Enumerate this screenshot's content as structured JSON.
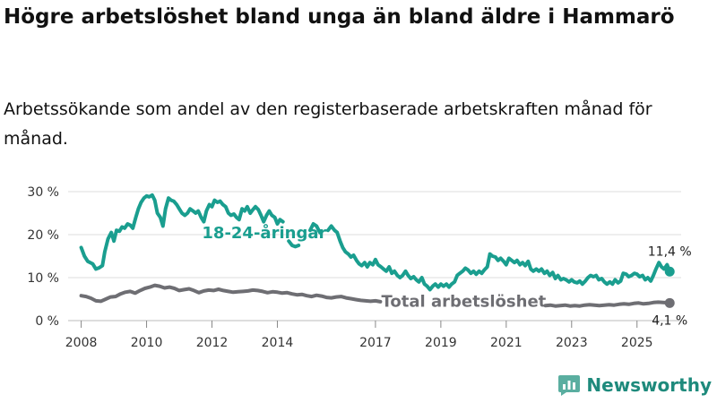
{
  "title": "Högre arbetslöshet bland unga än bland äldre i Hammarö",
  "subtitle": "Arbetssökande som andel av den registerbaserade arbetskraften månad för månad.",
  "brand": "Newsworthy",
  "chart_data": {
    "type": "line",
    "title": "Högre arbetslöshet bland unga än bland äldre i Hammarö",
    "xlabel": "",
    "ylabel": "",
    "xlim": [
      2007.6,
      2026.35
    ],
    "ylim": [
      0,
      30
    ],
    "y_ticks": [
      0,
      10,
      20,
      30
    ],
    "y_tick_labels": [
      "0 %",
      "10 %",
      "20 %",
      "30 %"
    ],
    "x_tick_labels": [
      "2008",
      "2010",
      "2012",
      "2014",
      "2017",
      "2019",
      "2021",
      "2023",
      "2025"
    ],
    "grid": true,
    "series": [
      {
        "name": "18-24-åringar",
        "label": "18-24-åringar",
        "end_label": "11,4 %",
        "color": "#1a9e8f",
        "points": [
          [
            2008.0,
            17.0
          ],
          [
            2008.1,
            15.0
          ],
          [
            2008.2,
            13.8
          ],
          [
            2008.35,
            13.2
          ],
          [
            2008.45,
            12.0
          ],
          [
            2008.55,
            12.3
          ],
          [
            2008.65,
            12.8
          ],
          [
            2008.72,
            16.0
          ],
          [
            2008.82,
            19.0
          ],
          [
            2008.92,
            20.5
          ],
          [
            2009.0,
            18.5
          ],
          [
            2009.08,
            21.0
          ],
          [
            2009.17,
            20.8
          ],
          [
            2009.25,
            21.8
          ],
          [
            2009.33,
            21.5
          ],
          [
            2009.42,
            22.5
          ],
          [
            2009.5,
            22.2
          ],
          [
            2009.58,
            21.5
          ],
          [
            2009.67,
            24.0
          ],
          [
            2009.75,
            26.0
          ],
          [
            2009.83,
            27.5
          ],
          [
            2009.92,
            28.5
          ],
          [
            2010.0,
            29.0
          ],
          [
            2010.08,
            28.8
          ],
          [
            2010.17,
            29.2
          ],
          [
            2010.25,
            28.0
          ],
          [
            2010.33,
            25.0
          ],
          [
            2010.42,
            24.0
          ],
          [
            2010.5,
            22.0
          ],
          [
            2010.58,
            26.0
          ],
          [
            2010.67,
            28.5
          ],
          [
            2010.75,
            28.0
          ],
          [
            2010.83,
            27.8
          ],
          [
            2010.92,
            27.0
          ],
          [
            2011.0,
            26.0
          ],
          [
            2011.08,
            25.0
          ],
          [
            2011.17,
            24.5
          ],
          [
            2011.25,
            25.0
          ],
          [
            2011.33,
            26.0
          ],
          [
            2011.42,
            25.5
          ],
          [
            2011.5,
            25.0
          ],
          [
            2011.58,
            25.5
          ],
          [
            2011.67,
            24.0
          ],
          [
            2011.75,
            23.0
          ],
          [
            2011.83,
            25.5
          ],
          [
            2011.92,
            27.0
          ],
          [
            2012.0,
            26.5
          ],
          [
            2012.08,
            28.0
          ],
          [
            2012.17,
            27.5
          ],
          [
            2012.25,
            27.8
          ],
          [
            2012.33,
            27.0
          ],
          [
            2012.42,
            26.5
          ],
          [
            2012.5,
            25.0
          ],
          [
            2012.58,
            24.5
          ],
          [
            2012.67,
            24.8
          ],
          [
            2012.75,
            24.0
          ],
          [
            2012.83,
            23.5
          ],
          [
            2012.92,
            26.0
          ],
          [
            2013.0,
            25.5
          ],
          [
            2013.08,
            26.5
          ],
          [
            2013.17,
            25.0
          ],
          [
            2013.25,
            25.8
          ],
          [
            2013.33,
            26.5
          ],
          [
            2013.42,
            25.8
          ],
          [
            2013.5,
            24.5
          ],
          [
            2013.58,
            23.0
          ],
          [
            2013.67,
            24.5
          ],
          [
            2013.75,
            25.5
          ],
          [
            2013.83,
            24.5
          ],
          [
            2013.92,
            24.0
          ],
          [
            2014.0,
            22.5
          ],
          [
            2014.08,
            23.5
          ],
          [
            2014.17,
            23.0
          ],
          [
            null,
            null
          ],
          [
            2014.35,
            18.5
          ],
          [
            2014.45,
            17.5
          ],
          [
            2014.55,
            17.2
          ],
          [
            2014.65,
            17.5
          ],
          [
            null,
            null
          ],
          [
            2015.0,
            21.0
          ],
          [
            2015.1,
            22.5
          ],
          [
            2015.2,
            22.0
          ],
          [
            2015.3,
            20.5
          ],
          [
            null,
            null
          ],
          [
            2015.55,
            21.0
          ],
          [
            2015.65,
            22.0
          ],
          [
            2015.75,
            21.0
          ],
          [
            2015.83,
            20.5
          ],
          [
            2015.92,
            18.5
          ],
          [
            2016.0,
            17.0
          ],
          [
            2016.08,
            16.0
          ],
          [
            2016.17,
            15.5
          ],
          [
            2016.25,
            14.8
          ],
          [
            2016.33,
            15.2
          ],
          [
            2016.42,
            14.0
          ],
          [
            2016.5,
            13.2
          ],
          [
            2016.58,
            12.8
          ],
          [
            2016.67,
            13.5
          ],
          [
            2016.75,
            12.5
          ],
          [
            2016.83,
            13.5
          ],
          [
            2016.92,
            13.0
          ],
          [
            2017.0,
            14.2
          ],
          [
            2017.08,
            13.0
          ],
          [
            2017.17,
            12.5
          ],
          [
            2017.25,
            12.0
          ],
          [
            2017.33,
            11.5
          ],
          [
            2017.42,
            12.5
          ],
          [
            2017.5,
            11.0
          ],
          [
            2017.58,
            11.5
          ],
          [
            2017.67,
            10.5
          ],
          [
            2017.75,
            10.0
          ],
          [
            2017.83,
            10.5
          ],
          [
            2017.92,
            11.5
          ],
          [
            2018.0,
            10.5
          ],
          [
            2018.08,
            9.8
          ],
          [
            2018.17,
            10.2
          ],
          [
            2018.25,
            9.5
          ],
          [
            2018.33,
            9.0
          ],
          [
            2018.42,
            10.0
          ],
          [
            2018.5,
            8.5
          ],
          [
            2018.58,
            8.0
          ],
          [
            2018.67,
            7.2
          ],
          [
            2018.75,
            8.0
          ],
          [
            2018.83,
            8.5
          ],
          [
            2018.92,
            7.8
          ],
          [
            2019.0,
            8.5
          ],
          [
            2019.08,
            8.0
          ],
          [
            2019.17,
            8.5
          ],
          [
            2019.25,
            7.8
          ],
          [
            2019.33,
            8.5
          ],
          [
            2019.42,
            9.0
          ],
          [
            2019.5,
            10.5
          ],
          [
            2019.58,
            11.0
          ],
          [
            2019.67,
            11.5
          ],
          [
            2019.75,
            12.2
          ],
          [
            2019.83,
            11.8
          ],
          [
            2019.92,
            11.0
          ],
          [
            2020.0,
            11.5
          ],
          [
            2020.08,
            10.8
          ],
          [
            2020.17,
            11.5
          ],
          [
            2020.25,
            11.0
          ],
          [
            2020.33,
            11.8
          ],
          [
            2020.42,
            12.5
          ],
          [
            2020.5,
            15.5
          ],
          [
            2020.58,
            15.0
          ],
          [
            2020.67,
            14.8
          ],
          [
            2020.75,
            14.0
          ],
          [
            2020.83,
            14.5
          ],
          [
            2020.92,
            13.8
          ],
          [
            2021.0,
            13.0
          ],
          [
            2021.08,
            14.5
          ],
          [
            2021.17,
            14.0
          ],
          [
            2021.25,
            13.5
          ],
          [
            2021.33,
            14.0
          ],
          [
            2021.42,
            13.0
          ],
          [
            2021.5,
            13.5
          ],
          [
            2021.58,
            12.8
          ],
          [
            2021.67,
            13.8
          ],
          [
            2021.75,
            12.0
          ],
          [
            2021.83,
            11.5
          ],
          [
            2021.92,
            12.0
          ],
          [
            2022.0,
            11.5
          ],
          [
            2022.08,
            12.0
          ],
          [
            2022.17,
            11.0
          ],
          [
            2022.25,
            11.5
          ],
          [
            2022.33,
            10.5
          ],
          [
            2022.42,
            11.2
          ],
          [
            2022.5,
            9.8
          ],
          [
            2022.58,
            10.5
          ],
          [
            2022.67,
            9.5
          ],
          [
            2022.75,
            9.8
          ],
          [
            2022.83,
            9.5
          ],
          [
            2022.92,
            9.0
          ],
          [
            2023.0,
            9.5
          ],
          [
            2023.08,
            9.0
          ],
          [
            2023.17,
            8.8
          ],
          [
            2023.25,
            9.2
          ],
          [
            2023.33,
            8.5
          ],
          [
            2023.42,
            9.2
          ],
          [
            2023.5,
            10.0
          ],
          [
            2023.58,
            10.5
          ],
          [
            2023.67,
            10.2
          ],
          [
            2023.75,
            10.5
          ],
          [
            2023.83,
            9.5
          ],
          [
            2023.92,
            9.8
          ],
          [
            2024.0,
            9.0
          ],
          [
            2024.08,
            8.5
          ],
          [
            2024.17,
            9.0
          ],
          [
            2024.25,
            8.5
          ],
          [
            2024.33,
            9.5
          ],
          [
            2024.42,
            8.8
          ],
          [
            2024.5,
            9.2
          ],
          [
            2024.58,
            11.0
          ],
          [
            2024.67,
            10.8
          ],
          [
            2024.75,
            10.2
          ],
          [
            2024.83,
            10.5
          ],
          [
            2024.92,
            11.0
          ],
          [
            2025.0,
            10.8
          ],
          [
            2025.08,
            10.2
          ],
          [
            2025.17,
            10.5
          ],
          [
            2025.25,
            9.5
          ],
          [
            2025.33,
            10.0
          ],
          [
            2025.42,
            9.2
          ],
          [
            2025.5,
            10.5
          ],
          [
            2025.58,
            12.0
          ],
          [
            2025.67,
            13.5
          ],
          [
            2025.75,
            12.5
          ],
          [
            2025.83,
            12.0
          ],
          [
            2025.92,
            13.0
          ],
          [
            2026.0,
            11.4
          ]
        ]
      },
      {
        "name": "Total arbetslöshet",
        "label": "Total arbetslöshet",
        "end_label": "4,1 %",
        "color": "#6e6e73",
        "points": [
          [
            2008.0,
            5.8
          ],
          [
            2008.15,
            5.6
          ],
          [
            2008.3,
            5.2
          ],
          [
            2008.45,
            4.6
          ],
          [
            2008.6,
            4.5
          ],
          [
            2008.75,
            5.0
          ],
          [
            2008.9,
            5.5
          ],
          [
            2009.05,
            5.6
          ],
          [
            2009.2,
            6.2
          ],
          [
            2009.35,
            6.6
          ],
          [
            2009.5,
            6.8
          ],
          [
            2009.65,
            6.4
          ],
          [
            2009.8,
            7.0
          ],
          [
            2009.95,
            7.5
          ],
          [
            2010.1,
            7.8
          ],
          [
            2010.25,
            8.2
          ],
          [
            2010.4,
            8.0
          ],
          [
            2010.55,
            7.6
          ],
          [
            2010.7,
            7.8
          ],
          [
            2010.85,
            7.5
          ],
          [
            2011.0,
            7.0
          ],
          [
            2011.15,
            7.2
          ],
          [
            2011.3,
            7.4
          ],
          [
            2011.45,
            7.0
          ],
          [
            2011.6,
            6.5
          ],
          [
            2011.75,
            6.9
          ],
          [
            2011.9,
            7.1
          ],
          [
            2012.05,
            7.0
          ],
          [
            2012.2,
            7.3
          ],
          [
            2012.35,
            7.0
          ],
          [
            2012.5,
            6.8
          ],
          [
            2012.65,
            6.6
          ],
          [
            2012.8,
            6.7
          ],
          [
            2012.95,
            6.8
          ],
          [
            2013.1,
            6.9
          ],
          [
            2013.25,
            7.1
          ],
          [
            2013.4,
            7.0
          ],
          [
            2013.55,
            6.8
          ],
          [
            2013.7,
            6.5
          ],
          [
            2013.85,
            6.7
          ],
          [
            2014.0,
            6.6
          ],
          [
            2014.15,
            6.4
          ],
          [
            2014.3,
            6.5
          ],
          [
            2014.45,
            6.2
          ],
          [
            2014.6,
            6.0
          ],
          [
            2014.75,
            6.1
          ],
          [
            2014.9,
            5.8
          ],
          [
            2015.05,
            5.6
          ],
          [
            2015.2,
            5.9
          ],
          [
            2015.35,
            5.7
          ],
          [
            2015.5,
            5.4
          ],
          [
            2015.65,
            5.3
          ],
          [
            2015.8,
            5.5
          ],
          [
            2015.95,
            5.6
          ],
          [
            2016.1,
            5.3
          ],
          [
            2016.25,
            5.1
          ],
          [
            2016.4,
            4.9
          ],
          [
            2016.55,
            4.7
          ],
          [
            2016.7,
            4.6
          ],
          [
            2016.85,
            4.5
          ],
          [
            2017.0,
            4.6
          ],
          [
            2017.15,
            4.4
          ],
          [
            null,
            null
          ],
          [
            2022.2,
            3.5
          ],
          [
            2022.35,
            3.6
          ],
          [
            2022.5,
            3.4
          ],
          [
            2022.65,
            3.5
          ],
          [
            2022.8,
            3.6
          ],
          [
            2022.95,
            3.4
          ],
          [
            2023.1,
            3.5
          ],
          [
            2023.25,
            3.4
          ],
          [
            2023.4,
            3.6
          ],
          [
            2023.55,
            3.7
          ],
          [
            2023.7,
            3.6
          ],
          [
            2023.85,
            3.5
          ],
          [
            2024.0,
            3.6
          ],
          [
            2024.15,
            3.7
          ],
          [
            2024.3,
            3.6
          ],
          [
            2024.45,
            3.8
          ],
          [
            2024.6,
            3.9
          ],
          [
            2024.75,
            3.8
          ],
          [
            2024.9,
            4.0
          ],
          [
            2025.05,
            4.1
          ],
          [
            2025.2,
            3.9
          ],
          [
            2025.35,
            4.0
          ],
          [
            2025.5,
            4.2
          ],
          [
            2025.65,
            4.3
          ],
          [
            2025.8,
            4.2
          ],
          [
            2026.0,
            4.1
          ]
        ]
      }
    ]
  }
}
